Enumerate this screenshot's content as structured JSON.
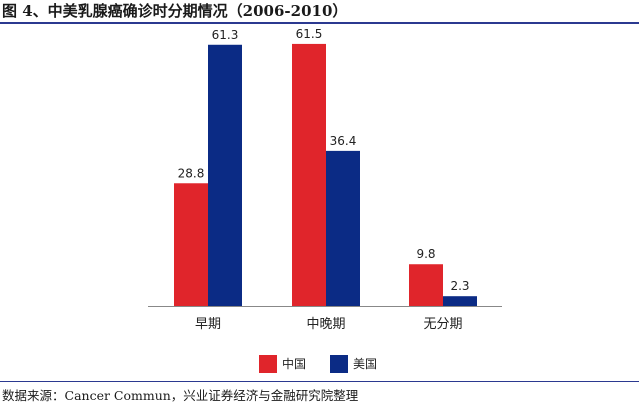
{
  "header": {
    "title": "图 4、中美乳腺癌确诊时分期情况（2006-2010）"
  },
  "footer": {
    "source": "数据来源：Cancer Commun，兴业证券经济与金融研究院整理"
  },
  "chart_data": {
    "type": "bar",
    "title": "",
    "xlabel": "",
    "ylabel": "",
    "categories": [
      "早期",
      "中晚期",
      "无分期"
    ],
    "series": [
      {
        "name": "中国",
        "values": [
          28.8,
          61.5,
          9.8
        ],
        "color": "#e0252b"
      },
      {
        "name": "美国",
        "values": [
          61.3,
          36.4,
          2.3
        ],
        "color": "#0b2b85"
      }
    ],
    "ylim": [
      0,
      65
    ],
    "grid": false,
    "legend_position": "bottom",
    "data_labels": true
  }
}
